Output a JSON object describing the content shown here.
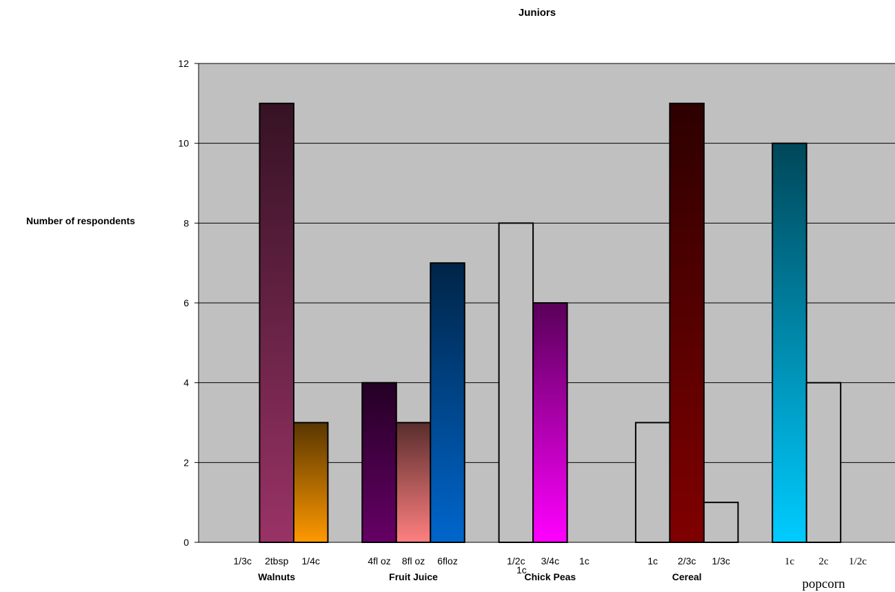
{
  "chart_data": {
    "type": "bar",
    "title": "Juniors",
    "ylabel": "Number of respondents",
    "xlabel": "",
    "ylim": [
      0,
      12
    ],
    "yticks": [
      0,
      2,
      4,
      6,
      8,
      10,
      12
    ],
    "grid": true,
    "legend": "none",
    "groups": [
      {
        "name": "Walnuts",
        "bars": [
          {
            "label": "1/3c",
            "value": 0,
            "color": "none"
          },
          {
            "label": "2tbsp",
            "value": 11,
            "color": "#993366"
          },
          {
            "label": "1/4c",
            "value": 3,
            "color": "#ff9900"
          }
        ]
      },
      {
        "name": "Fruit Juice",
        "bars": [
          {
            "label": "4fl oz",
            "value": 4,
            "color": "#660066"
          },
          {
            "label": "8fl oz",
            "value": 3,
            "color": "#ff8080"
          },
          {
            "label": "6floz",
            "value": 7,
            "color": "#0066cc"
          }
        ]
      },
      {
        "name": "Chick Peas",
        "bars": [
          {
            "label": "1/2c",
            "value": 8,
            "color": "#c0c0c0"
          },
          {
            "label": "3/4c",
            "value": 6,
            "color": "#ff00ff"
          },
          {
            "label": "1c",
            "value": 0,
            "color": "none"
          }
        ],
        "extra_label": "1c"
      },
      {
        "name": "Cereal",
        "bars": [
          {
            "label": "1c",
            "value": 3,
            "color": "#c0c0c0"
          },
          {
            "label": "2/3c",
            "value": 11,
            "color": "#800000"
          },
          {
            "label": "1/3c",
            "value": 1,
            "color": "#c0c0c0"
          }
        ]
      },
      {
        "name": "popcorn",
        "bars": [
          {
            "label": "1c",
            "value": 10,
            "color": "#00ccff"
          },
          {
            "label": "2c",
            "value": 4,
            "color": "#c0c0c0"
          },
          {
            "label": "1/2c",
            "value": 0,
            "color": "none"
          }
        ]
      }
    ],
    "colors": {
      "plot_background": "#c0c0c0",
      "gridline": "#000000"
    }
  }
}
